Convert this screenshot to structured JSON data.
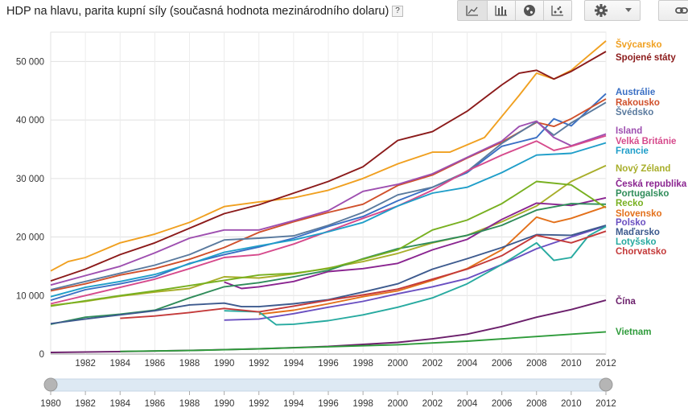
{
  "header": {
    "title": "HDP na hlavu, parita kupní síly (současná hodnota mezinárodního dolaru)",
    "help_label": "?"
  },
  "toolbar": {
    "buttons": [
      {
        "icon": "line-chart-icon",
        "active": true
      },
      {
        "icon": "bar-chart-icon",
        "active": false
      },
      {
        "icon": "globe-map-icon",
        "active": false
      },
      {
        "icon": "scatter-chart-icon",
        "active": false
      },
      {
        "icon": "gear-icon",
        "active": false
      },
      {
        "icon": "link-icon",
        "active": false
      }
    ]
  },
  "timeline": {
    "range": [
      1980,
      2012
    ],
    "tick_labels": [
      "1980",
      "1982",
      "1984",
      "1986",
      "1988",
      "1990",
      "1992",
      "1994",
      "1996",
      "1998",
      "2000",
      "2002",
      "2004",
      "2006",
      "2008",
      "2010",
      "2012"
    ]
  },
  "chart_data": {
    "type": "line",
    "title": "HDP na hlavu, parita kupní síly (současná hodnota mezinárodního dolaru)",
    "xlabel": "",
    "ylabel": "",
    "xlim": [
      1980,
      2012
    ],
    "ylim": [
      0,
      55000
    ],
    "x_tick_labels": [
      "1982",
      "1984",
      "1986",
      "1988",
      "1990",
      "1992",
      "1994",
      "1996",
      "1998",
      "2000",
      "2002",
      "2004",
      "2006",
      "2008",
      "2010",
      "2012"
    ],
    "y_tick_labels": [
      "0",
      "10 000",
      "20 000",
      "30 000",
      "40 000",
      "50 000"
    ],
    "y_ticks": [
      0,
      10000,
      20000,
      30000,
      40000,
      50000
    ],
    "grid": true,
    "legend": "right, labels at line ends",
    "series": [
      {
        "name": "Švýcarsko",
        "color": "#f0a020",
        "x": [
          1980,
          1981,
          1982,
          1984,
          1986,
          1988,
          1990,
          1992,
          1994,
          1996,
          1998,
          2000,
          2002,
          2003,
          2005,
          2007,
          2008,
          2009,
          2010,
          2012
        ],
        "values": [
          14200,
          15800,
          16500,
          19000,
          20500,
          22500,
          25200,
          26000,
          26700,
          28000,
          30000,
          32500,
          34500,
          34500,
          37000,
          44200,
          48000,
          47000,
          48500,
          53500
        ]
      },
      {
        "name": "Spojené státy",
        "color": "#8b1a1a",
        "x": [
          1980,
          1982,
          1984,
          1986,
          1988,
          1990,
          1992,
          1994,
          1996,
          1998,
          2000,
          2002,
          2004,
          2006,
          2007,
          2008,
          2009,
          2010,
          2012
        ],
        "values": [
          12500,
          14500,
          17000,
          19000,
          21500,
          24000,
          25500,
          27500,
          29500,
          32000,
          36500,
          38000,
          41500,
          46000,
          48000,
          48500,
          47000,
          48300,
          51700
        ]
      },
      {
        "name": "Austrálie",
        "color": "#3a6fc4",
        "x": [
          1980,
          1982,
          1984,
          1986,
          1988,
          1990,
          1992,
          1994,
          1996,
          1998,
          2000,
          2002,
          2004,
          2006,
          2008,
          2009,
          2010,
          2012
        ],
        "values": [
          9200,
          11000,
          12000,
          13200,
          15500,
          17000,
          18300,
          19800,
          21800,
          23500,
          26200,
          28500,
          31000,
          35500,
          37000,
          40200,
          39000,
          44500
        ]
      },
      {
        "name": "Rakousko",
        "color": "#d0502b",
        "x": [
          1980,
          1982,
          1984,
          1986,
          1988,
          1990,
          1992,
          1994,
          1996,
          1998,
          2000,
          2002,
          2004,
          2006,
          2008,
          2009,
          2010,
          2012
        ],
        "values": [
          10800,
          12000,
          13500,
          14600,
          16200,
          18200,
          20800,
          22600,
          24200,
          25600,
          28800,
          30600,
          33500,
          36200,
          39600,
          38900,
          40200,
          43600
        ]
      },
      {
        "name": "Švédsko",
        "color": "#5a7a9e",
        "x": [
          1980,
          1982,
          1984,
          1986,
          1988,
          1990,
          1992,
          1994,
          1996,
          1998,
          2000,
          2002,
          2004,
          2006,
          2008,
          2009,
          2010,
          2012
        ],
        "values": [
          11000,
          12400,
          13800,
          15200,
          17000,
          19500,
          19800,
          20200,
          22000,
          24200,
          27200,
          28500,
          31200,
          36000,
          39700,
          37400,
          39500,
          43000
        ]
      },
      {
        "name": "Island",
        "color": "#9e4fb0",
        "x": [
          1980,
          1982,
          1984,
          1986,
          1988,
          1990,
          1992,
          1994,
          1996,
          1998,
          2000,
          2002,
          2004,
          2006,
          2007,
          2008,
          2009,
          2010,
          2012
        ],
        "values": [
          11800,
          13400,
          15000,
          17300,
          19800,
          21200,
          21200,
          22800,
          24500,
          27800,
          29000,
          30800,
          33600,
          36400,
          38900,
          39800,
          37000,
          35600,
          37600
        ]
      },
      {
        "name": "Velká Británie",
        "color": "#d64a8c",
        "x": [
          1980,
          1982,
          1984,
          1986,
          1988,
          1990,
          1992,
          1994,
          1996,
          1998,
          2000,
          2002,
          2004,
          2006,
          2007,
          2008,
          2009,
          2010,
          2012
        ],
        "values": [
          8600,
          10000,
          11400,
          12800,
          14600,
          16500,
          17000,
          18800,
          21000,
          23200,
          25300,
          28000,
          31300,
          34000,
          35200,
          36400,
          34800,
          35500,
          37300
        ]
      },
      {
        "name": "Francie",
        "color": "#1f9ec9",
        "x": [
          1980,
          1982,
          1984,
          1986,
          1988,
          1990,
          1992,
          1994,
          1996,
          1998,
          2000,
          2002,
          2004,
          2006,
          2008,
          2010,
          2012
        ],
        "values": [
          9800,
          11400,
          12400,
          13600,
          15400,
          17400,
          18500,
          19500,
          20900,
          22500,
          25300,
          27500,
          28500,
          31000,
          34000,
          34300,
          36100
        ]
      },
      {
        "name": "Nový Zéland",
        "color": "#a8ae2a",
        "x": [
          1980,
          1982,
          1984,
          1986,
          1988,
          1990,
          1992,
          1994,
          1996,
          1998,
          2000,
          2002,
          2004,
          2006,
          2008,
          2010,
          2012
        ],
        "values": [
          8300,
          9000,
          9900,
          10600,
          11200,
          13200,
          13000,
          13700,
          14700,
          15800,
          17200,
          19000,
          20300,
          22600,
          25300,
          29500,
          32200
        ]
      },
      {
        "name": "Česká republika",
        "color": "#8a2490",
        "x": [
          1990,
          1991,
          1992,
          1994,
          1996,
          1998,
          2000,
          2002,
          2004,
          2006,
          2008,
          2010,
          2012
        ],
        "values": [
          12300,
          11200,
          11500,
          12400,
          14100,
          14600,
          15500,
          17800,
          19600,
          23000,
          25800,
          25400,
          26700
        ]
      },
      {
        "name": "Portugalsko",
        "color": "#2f8c5a",
        "x": [
          1980,
          1982,
          1984,
          1986,
          1988,
          1990,
          1992,
          1994,
          1996,
          1998,
          2000,
          2002,
          2004,
          2006,
          2008,
          2010,
          2012
        ],
        "values": [
          5100,
          6300,
          6800,
          7500,
          9600,
          11500,
          12200,
          13200,
          14300,
          16300,
          18000,
          19100,
          20300,
          22000,
          24600,
          25700,
          25600
        ]
      },
      {
        "name": "Recko",
        "color": "#78b020",
        "x": [
          1980,
          1982,
          1984,
          1986,
          1988,
          1990,
          1992,
          1994,
          1996,
          1998,
          2000,
          2002,
          2004,
          2006,
          2008,
          2010,
          2012
        ],
        "values": [
          8200,
          9100,
          10000,
          10800,
          11700,
          12600,
          13500,
          13800,
          14600,
          16200,
          17800,
          21200,
          22900,
          25700,
          29500,
          28900,
          25000
        ]
      },
      {
        "name": "Slovensko",
        "color": "#e3701a",
        "x": [
          1992,
          1994,
          1996,
          1998,
          2000,
          2002,
          2004,
          2006,
          2008,
          2009,
          2010,
          2012
        ],
        "values": [
          6800,
          7500,
          8600,
          9800,
          10800,
          12600,
          14600,
          17800,
          23400,
          22500,
          23200,
          25200
        ]
      },
      {
        "name": "Polsko",
        "color": "#6a4fc1",
        "x": [
          1990,
          1992,
          1994,
          1996,
          1998,
          2000,
          2002,
          2004,
          2006,
          2008,
          2010,
          2012
        ],
        "values": [
          5800,
          6000,
          6900,
          8000,
          9000,
          10300,
          11500,
          12900,
          15300,
          18000,
          20000,
          21900
        ]
      },
      {
        "name": "Maďarsko",
        "color": "#3d5a8e",
        "x": [
          1980,
          1982,
          1984,
          1986,
          1988,
          1990,
          1991,
          1992,
          1994,
          1996,
          1998,
          2000,
          2002,
          2004,
          2006,
          2008,
          2010,
          2012
        ],
        "values": [
          5200,
          6000,
          6700,
          7400,
          8400,
          8700,
          8100,
          8100,
          8600,
          9300,
          10600,
          12000,
          14500,
          16300,
          18200,
          20400,
          20300,
          22000
        ]
      },
      {
        "name": "Lotyšsko",
        "color": "#27aaa0",
        "x": [
          1990,
          1992,
          1993,
          1994,
          1996,
          1998,
          2000,
          2002,
          2004,
          2006,
          2008,
          2009,
          2010,
          2011,
          2012
        ],
        "values": [
          7400,
          7200,
          5000,
          5100,
          5700,
          6700,
          8000,
          9600,
          12000,
          15300,
          19000,
          16000,
          16500,
          20200,
          21800
        ]
      },
      {
        "name": "Chorvatsko",
        "color": "#c43a3a",
        "x": [
          1984,
          1986,
          1988,
          1990,
          1992,
          1994,
          1996,
          1998,
          2000,
          2002,
          2004,
          2006,
          2008,
          2010,
          2012
        ],
        "values": [
          6100,
          6500,
          7100,
          7800,
          7200,
          8200,
          9200,
          10100,
          11100,
          12800,
          14500,
          16800,
          20300,
          19000,
          21000
        ]
      },
      {
        "name": "Čína",
        "color": "#6b1f6b",
        "x": [
          1980,
          1984,
          1988,
          1992,
          1996,
          2000,
          2002,
          2004,
          2006,
          2008,
          2010,
          2012
        ],
        "values": [
          280,
          420,
          620,
          900,
          1300,
          2000,
          2600,
          3400,
          4700,
          6300,
          7600,
          9200
        ]
      },
      {
        "name": "Vietnam",
        "color": "#2e9b3a",
        "x": [
          1984,
          1988,
          1992,
          1996,
          2000,
          2004,
          2008,
          2012
        ],
        "values": [
          450,
          600,
          900,
          1250,
          1600,
          2200,
          3000,
          3800
        ]
      }
    ],
    "end_labels": [
      {
        "name": "Švýcarsko",
        "color": "#f0a020",
        "slot": 55
      },
      {
        "name": "Spojené státy",
        "color": "#8b1a1a",
        "slot": 71
      },
      {
        "name": "Austrálie",
        "color": "#3a6fc4",
        "slot": 114
      },
      {
        "name": "Rakousko",
        "color": "#d0502b",
        "slot": 127
      },
      {
        "name": "Švédsko",
        "color": "#5a7a9e",
        "slot": 139
      },
      {
        "name": "Island",
        "color": "#9e4fb0",
        "slot": 162
      },
      {
        "name": "Velká Británie",
        "color": "#d64a8c",
        "slot": 175
      },
      {
        "name": "Francie",
        "color": "#1f9ec9",
        "slot": 187
      },
      {
        "name": "Nový Zéland",
        "color": "#a8ae2a",
        "slot": 209
      },
      {
        "name": "Česká republika",
        "color": "#8a2490",
        "slot": 228
      },
      {
        "name": "Portugalsko",
        "color": "#2f8c5a",
        "slot": 240
      },
      {
        "name": "Recko",
        "color": "#78b020",
        "slot": 252
      },
      {
        "name": "Slovensko",
        "color": "#e3701a",
        "slot": 265
      },
      {
        "name": "Polsko",
        "color": "#6a4fc1",
        "slot": 276
      },
      {
        "name": "Maďarsko",
        "color": "#3d5a8e",
        "slot": 288
      },
      {
        "name": "Lotyšsko",
        "color": "#27aaa0",
        "slot": 300
      },
      {
        "name": "Chorvatsko",
        "color": "#c43a3a",
        "slot": 312
      },
      {
        "name": "Čína",
        "color": "#6b1f6b",
        "slot": 374
      },
      {
        "name": "Vietnam",
        "color": "#2e9b3a",
        "slot": 412
      }
    ]
  }
}
